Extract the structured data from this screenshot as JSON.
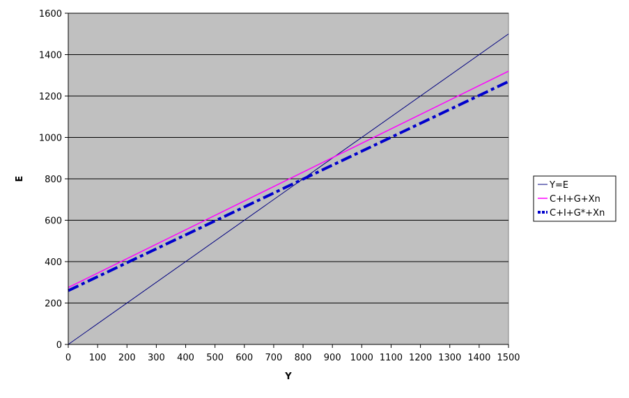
{
  "chart_data": {
    "type": "line",
    "title": "",
    "xlabel": "Y",
    "ylabel": "E",
    "xlim": [
      0,
      1500
    ],
    "ylim": [
      0,
      1600
    ],
    "x_ticks": [
      0,
      100,
      200,
      300,
      400,
      500,
      600,
      700,
      800,
      900,
      1000,
      1100,
      1200,
      1300,
      1400,
      1500
    ],
    "y_ticks": [
      0,
      200,
      400,
      600,
      800,
      1000,
      1200,
      1400,
      1600
    ],
    "grid": "horizontal",
    "legend_position": "right",
    "plot_background": "#c0c0c0",
    "series": [
      {
        "name": "Y=E",
        "x": [
          0,
          1500
        ],
        "y": [
          0,
          1500
        ],
        "color": "#000080",
        "style": "solid",
        "width": 1
      },
      {
        "name": "C+I+G+Xn",
        "x": [
          0,
          1500
        ],
        "y": [
          275,
          1320
        ],
        "color": "#ff00ff",
        "style": "solid",
        "width": 1.5
      },
      {
        "name": "C+I+G*+Xn",
        "x": [
          0,
          1500
        ],
        "y": [
          260,
          1270
        ],
        "color": "#0000cc",
        "style": "dashdot",
        "width": 4
      }
    ]
  }
}
